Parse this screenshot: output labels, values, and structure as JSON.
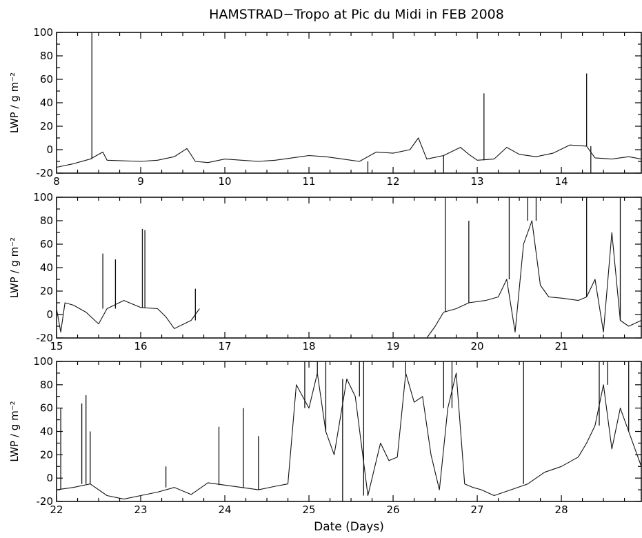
{
  "title": "HAMSTRAD−Tropo at Pic du Midi in FEB 2008",
  "chart_data": [
    {
      "type": "line",
      "panel": "top",
      "title": "HAMSTRAD−Tropo at Pic du Midi in FEB 2008",
      "ylabel": "LWP / g m⁻²",
      "xlabel": "",
      "xlim": [
        8,
        14.95
      ],
      "ylim": [
        -20,
        100
      ],
      "xticks": [
        "8",
        "9",
        "10",
        "11",
        "12",
        "13",
        "14"
      ],
      "yticks": [
        "-20",
        "0",
        "20",
        "40",
        "60",
        "80",
        "100"
      ],
      "grid": false,
      "x": [
        8.0,
        8.2,
        8.4,
        8.55,
        8.6,
        9.0,
        9.2,
        9.4,
        9.55,
        9.65,
        9.8,
        10.0,
        10.2,
        10.4,
        10.6,
        10.8,
        11.0,
        11.2,
        11.4,
        11.6,
        11.8,
        12.0,
        12.2,
        12.3,
        12.4,
        12.6,
        12.8,
        12.9,
        13.0,
        13.2,
        13.35,
        13.5,
        13.7,
        13.9,
        14.1,
        14.3,
        14.4,
        14.6,
        14.8,
        14.95
      ],
      "y": [
        -15,
        -12,
        -8,
        -2,
        -9,
        -10,
        -9,
        -6,
        1,
        -10,
        -11,
        -8,
        -9,
        -10,
        -9,
        -7,
        -5,
        -6,
        -8,
        -10,
        -2,
        -3,
        0,
        10,
        -8,
        -5,
        2,
        -4,
        -9,
        -8,
        2,
        -4,
        -6,
        -3,
        4,
        3,
        -7,
        -8,
        -6,
        -8
      ],
      "spikes": [
        {
          "x": 8.42,
          "y": 100
        },
        {
          "x": 11.7,
          "y": -20
        },
        {
          "x": 12.6,
          "y": -20
        },
        {
          "x": 13.08,
          "y": 48
        },
        {
          "x": 14.3,
          "y": 65
        },
        {
          "x": 14.35,
          "y": -20
        }
      ]
    },
    {
      "type": "line",
      "panel": "middle",
      "ylabel": "LWP / g m⁻²",
      "xlabel": "",
      "xlim": [
        15,
        21.95
      ],
      "ylim": [
        -20,
        100
      ],
      "xticks": [
        "15",
        "16",
        "17",
        "18",
        "19",
        "20",
        "21"
      ],
      "yticks": [
        "-20",
        "0",
        "20",
        "40",
        "60",
        "80",
        "100"
      ],
      "grid": false,
      "x": [
        15.0,
        15.05,
        15.1,
        15.2,
        15.35,
        15.5,
        15.6,
        15.8,
        16.0,
        16.2,
        16.3,
        16.4,
        16.6,
        16.7,
        19.4,
        19.5,
        19.6,
        19.75,
        19.9,
        20.1,
        20.25,
        20.35,
        20.45,
        20.55,
        20.65,
        20.75,
        20.85,
        21.0,
        21.2,
        21.3,
        21.4,
        21.5,
        21.6,
        21.7,
        21.8,
        21.95
      ],
      "y": [
        5,
        -15,
        10,
        8,
        2,
        -8,
        5,
        12,
        6,
        5,
        -2,
        -12,
        -5,
        5,
        -20,
        -10,
        2,
        5,
        10,
        12,
        15,
        30,
        -15,
        60,
        80,
        25,
        15,
        14,
        12,
        15,
        30,
        -15,
        70,
        -5,
        -10,
        -5
      ],
      "spikes": [
        {
          "x": 15.55,
          "y": 52
        },
        {
          "x": 15.7,
          "y": 47
        },
        {
          "x": 16.02,
          "y": 73
        },
        {
          "x": 16.05,
          "y": 72
        },
        {
          "x": 16.65,
          "y": 22
        },
        {
          "x": 19.62,
          "y": 100
        },
        {
          "x": 19.9,
          "y": 80
        },
        {
          "x": 20.38,
          "y": 100
        },
        {
          "x": 20.6,
          "y": 100
        },
        {
          "x": 20.7,
          "y": 100
        },
        {
          "x": 21.3,
          "y": 100
        },
        {
          "x": 21.7,
          "y": 100
        }
      ]
    },
    {
      "type": "line",
      "panel": "bottom",
      "ylabel": "LWP / g m⁻²",
      "xlabel": "Date (Days)",
      "xlim": [
        22,
        28.95
      ],
      "ylim": [
        -20,
        100
      ],
      "xticks": [
        "22",
        "23",
        "24",
        "25",
        "26",
        "27",
        "28"
      ],
      "yticks": [
        "-20",
        "0",
        "20",
        "40",
        "60",
        "80",
        "100"
      ],
      "grid": false,
      "x": [
        22.0,
        22.2,
        22.4,
        22.6,
        22.8,
        23.0,
        23.2,
        23.4,
        23.6,
        23.8,
        24.0,
        24.2,
        24.4,
        24.6,
        24.75,
        24.85,
        25.0,
        25.1,
        25.2,
        25.3,
        25.45,
        25.55,
        25.7,
        25.85,
        25.95,
        26.05,
        26.15,
        26.25,
        26.35,
        26.45,
        26.55,
        26.65,
        26.75,
        26.85,
        26.95,
        27.05,
        27.2,
        27.4,
        27.6,
        27.8,
        28.0,
        28.2,
        28.3,
        28.4,
        28.5,
        28.6,
        28.7,
        28.8,
        28.95
      ],
      "y": [
        -10,
        -8,
        -5,
        -15,
        -18,
        -15,
        -12,
        -8,
        -14,
        -4,
        -6,
        -8,
        -10,
        -7,
        -5,
        80,
        60,
        90,
        40,
        20,
        85,
        70,
        -15,
        30,
        15,
        18,
        90,
        65,
        70,
        20,
        -10,
        60,
        90,
        -5,
        -8,
        -10,
        -15,
        -10,
        -5,
        5,
        10,
        18,
        30,
        45,
        80,
        25,
        60,
        40,
        10
      ],
      "spikes": [
        {
          "x": 22.05,
          "y": 60
        },
        {
          "x": 22.3,
          "y": 64
        },
        {
          "x": 22.35,
          "y": 71
        },
        {
          "x": 22.4,
          "y": 40
        },
        {
          "x": 23.3,
          "y": 10
        },
        {
          "x": 23.93,
          "y": 44
        },
        {
          "x": 24.22,
          "y": 60
        },
        {
          "x": 24.4,
          "y": 36
        },
        {
          "x": 24.95,
          "y": 100
        },
        {
          "x": 25.1,
          "y": 100
        },
        {
          "x": 25.2,
          "y": 100
        },
        {
          "x": 25.4,
          "y": -20
        },
        {
          "x": 25.6,
          "y": 100
        },
        {
          "x": 25.65,
          "y": 100
        },
        {
          "x": 26.15,
          "y": 100
        },
        {
          "x": 26.6,
          "y": 100
        },
        {
          "x": 26.7,
          "y": 100
        },
        {
          "x": 27.55,
          "y": 100
        },
        {
          "x": 28.45,
          "y": 100
        },
        {
          "x": 28.55,
          "y": 100
        },
        {
          "x": 28.8,
          "y": 100
        }
      ]
    }
  ]
}
